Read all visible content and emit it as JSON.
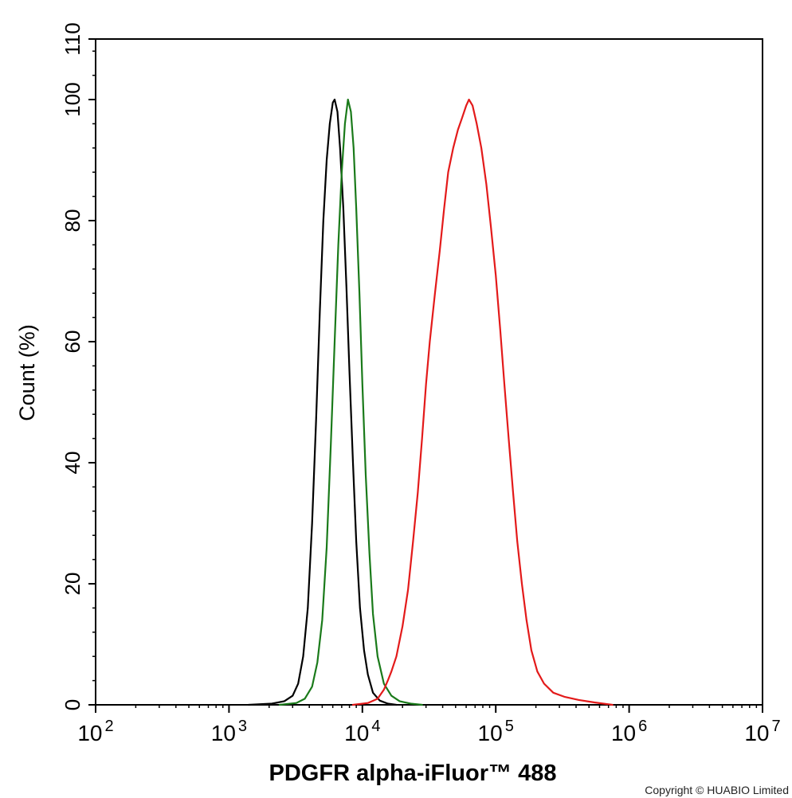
{
  "chart_data": {
    "type": "line",
    "title": "",
    "xlabel": "PDGFR alpha-iFluor™ 488",
    "ylabel": "Count  (%)",
    "x_scale": "log",
    "xlim": [
      100,
      10000000
    ],
    "ylim": [
      0,
      110
    ],
    "grid": false,
    "legend": "none",
    "x_tick_labels": [
      {
        "base": "10",
        "exp": "2",
        "value": 100
      },
      {
        "base": "10",
        "exp": "3",
        "value": 1000
      },
      {
        "base": "10",
        "exp": "4",
        "value": 10000
      },
      {
        "base": "10",
        "exp": "5",
        "value": 100000
      },
      {
        "base": "10",
        "exp": "6",
        "value": 1000000
      },
      {
        "base": "10",
        "exp": "7",
        "value": 10000000
      }
    ],
    "y_tick_labels": [
      "0",
      "20",
      "40",
      "60",
      "80",
      "100",
      "110"
    ],
    "y_tick_values": [
      0,
      20,
      40,
      60,
      80,
      100,
      110
    ],
    "series": [
      {
        "color": "#000000",
        "points": [
          [
            1400,
            0
          ],
          [
            2100,
            0.2
          ],
          [
            2600,
            0.6
          ],
          [
            3000,
            1.5
          ],
          [
            3300,
            3.5
          ],
          [
            3600,
            8
          ],
          [
            3900,
            16
          ],
          [
            4200,
            30
          ],
          [
            4500,
            47
          ],
          [
            4800,
            65
          ],
          [
            5100,
            80
          ],
          [
            5400,
            90
          ],
          [
            5700,
            96
          ],
          [
            6000,
            99.5
          ],
          [
            6200,
            100
          ],
          [
            6500,
            98
          ],
          [
            6800,
            92
          ],
          [
            7200,
            82
          ],
          [
            7600,
            69
          ],
          [
            8000,
            55
          ],
          [
            8500,
            40
          ],
          [
            9000,
            27
          ],
          [
            9600,
            16
          ],
          [
            10300,
            9
          ],
          [
            11000,
            5
          ],
          [
            12000,
            2
          ],
          [
            13500,
            0.7
          ],
          [
            15500,
            0.2
          ],
          [
            18000,
            0
          ]
        ]
      },
      {
        "color": "#1a7a1a",
        "points": [
          [
            2400,
            0
          ],
          [
            3200,
            0.3
          ],
          [
            3700,
            1
          ],
          [
            4200,
            3
          ],
          [
            4600,
            7
          ],
          [
            5000,
            14
          ],
          [
            5400,
            26
          ],
          [
            5800,
            43
          ],
          [
            6200,
            60
          ],
          [
            6600,
            76
          ],
          [
            7000,
            88
          ],
          [
            7400,
            96
          ],
          [
            7800,
            100
          ],
          [
            8200,
            98
          ],
          [
            8600,
            92
          ],
          [
            9000,
            82
          ],
          [
            9500,
            68
          ],
          [
            10000,
            53
          ],
          [
            10600,
            38
          ],
          [
            11300,
            25
          ],
          [
            12000,
            15
          ],
          [
            13000,
            8
          ],
          [
            14500,
            3.5
          ],
          [
            16500,
            1.5
          ],
          [
            19000,
            0.6
          ],
          [
            23000,
            0.2
          ],
          [
            28000,
            0
          ]
        ]
      },
      {
        "color": "#e31a1a",
        "points": [
          [
            8500,
            0
          ],
          [
            11000,
            0.3
          ],
          [
            13000,
            1
          ],
          [
            14500,
            2.5
          ],
          [
            15500,
            4
          ],
          [
            16500,
            5.5
          ],
          [
            18000,
            8
          ],
          [
            20000,
            13
          ],
          [
            22000,
            19
          ],
          [
            24000,
            27
          ],
          [
            26000,
            35
          ],
          [
            28000,
            44
          ],
          [
            30000,
            53
          ],
          [
            32000,
            60
          ],
          [
            35000,
            68
          ],
          [
            38000,
            75
          ],
          [
            41000,
            82
          ],
          [
            44000,
            88
          ],
          [
            48000,
            92
          ],
          [
            52000,
            95
          ],
          [
            56000,
            97
          ],
          [
            60000,
            99
          ],
          [
            63000,
            100
          ],
          [
            67000,
            99
          ],
          [
            72000,
            96
          ],
          [
            78000,
            92
          ],
          [
            85000,
            86
          ],
          [
            92000,
            79
          ],
          [
            100000,
            71
          ],
          [
            108000,
            62
          ],
          [
            116000,
            53
          ],
          [
            125000,
            44
          ],
          [
            135000,
            35
          ],
          [
            145000,
            27
          ],
          [
            157000,
            20
          ],
          [
            170000,
            14
          ],
          [
            185000,
            9
          ],
          [
            205000,
            5.5
          ],
          [
            230000,
            3.5
          ],
          [
            270000,
            2
          ],
          [
            330000,
            1.3
          ],
          [
            420000,
            0.8
          ],
          [
            550000,
            0.4
          ],
          [
            750000,
            0
          ]
        ]
      }
    ]
  },
  "copyright": "Copyright © HUABIO Limited"
}
